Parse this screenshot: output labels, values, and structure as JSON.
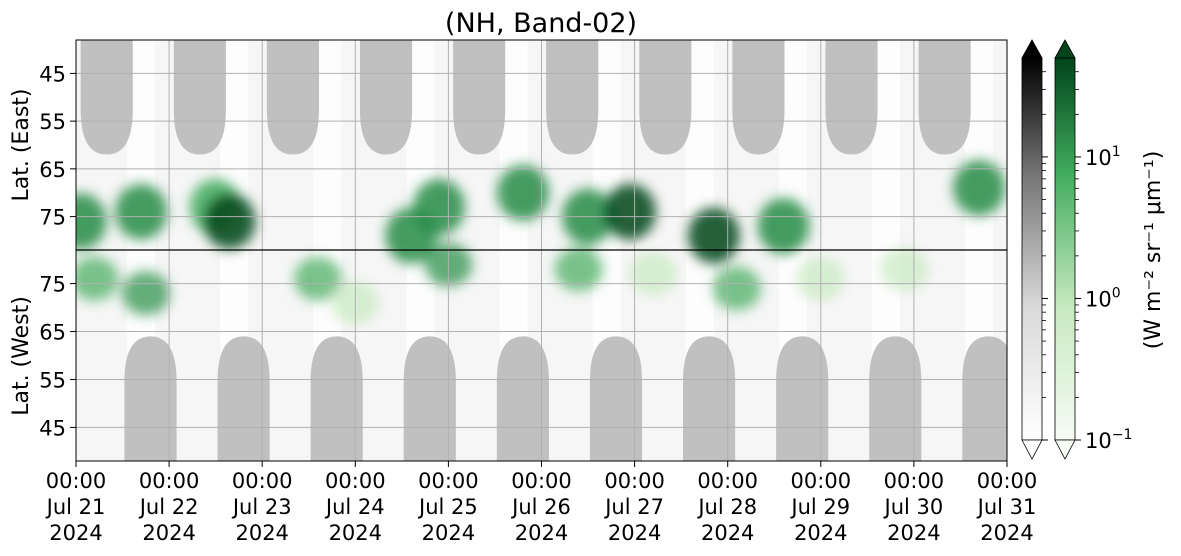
{
  "chart_data": {
    "type": "heatmap",
    "title": "(NH, Band-02)",
    "ylabel_top": "Lat. (East)",
    "ylabel_bottom": "Lat. (West)",
    "yticks_top": [
      "45",
      "55",
      "65",
      "75"
    ],
    "yticks_bottom": [
      "75",
      "65",
      "55",
      "45"
    ],
    "xticks": [
      {
        "time": "00:00",
        "date": "Jul 21",
        "year": "2024"
      },
      {
        "time": "00:00",
        "date": "Jul 22",
        "year": "2024"
      },
      {
        "time": "00:00",
        "date": "Jul 23",
        "year": "2024"
      },
      {
        "time": "00:00",
        "date": "Jul 24",
        "year": "2024"
      },
      {
        "time": "00:00",
        "date": "Jul 25",
        "year": "2024"
      },
      {
        "time": "00:00",
        "date": "Jul 26",
        "year": "2024"
      },
      {
        "time": "00:00",
        "date": "Jul 27",
        "year": "2024"
      },
      {
        "time": "00:00",
        "date": "Jul 28",
        "year": "2024"
      },
      {
        "time": "00:00",
        "date": "Jul 29",
        "year": "2024"
      },
      {
        "time": "00:00",
        "date": "Jul 30",
        "year": "2024"
      },
      {
        "time": "00:00",
        "date": "Jul 31",
        "year": "2024"
      }
    ],
    "xlim": [
      "2024-07-21 00:00",
      "2024-07-31 00:00"
    ],
    "ylim_top": [
      38,
      82
    ],
    "ylim_bottom": [
      82,
      38
    ],
    "grid": true,
    "colorbar": {
      "label": "(W m⁻² sr⁻¹ μm⁻¹)",
      "scale": "log",
      "range": [
        0.1,
        50
      ],
      "ticks": [
        {
          "base": "10",
          "exp": "1",
          "value": 10
        },
        {
          "base": "10",
          "exp": "0",
          "value": 1
        },
        {
          "base": "10",
          "exp": "−1",
          "value": 0.1
        }
      ],
      "extend": "both",
      "cmaps": [
        "Greys",
        "Greens"
      ]
    },
    "colors": {
      "green_dark": "#00441b",
      "green_mid": "#41ab5d",
      "green_light": "#c7e9c0",
      "grey_shade": "#c0c0c0",
      "background": "#f6f6f6"
    },
    "night_shading_east": [
      {
        "day": 0.33,
        "edge_lat": 62
      },
      {
        "day": 1.33,
        "edge_lat": 62
      },
      {
        "day": 2.33,
        "edge_lat": 62
      },
      {
        "day": 3.33,
        "edge_lat": 62
      },
      {
        "day": 4.33,
        "edge_lat": 62
      },
      {
        "day": 5.33,
        "edge_lat": 62
      },
      {
        "day": 6.33,
        "edge_lat": 62
      },
      {
        "day": 7.33,
        "edge_lat": 62
      },
      {
        "day": 8.33,
        "edge_lat": 62
      },
      {
        "day": 9.33,
        "edge_lat": 62
      }
    ],
    "night_shading_west": [
      {
        "day": 0.8,
        "edge_lat": 64
      },
      {
        "day": 1.8,
        "edge_lat": 64
      },
      {
        "day": 2.8,
        "edge_lat": 64
      },
      {
        "day": 3.8,
        "edge_lat": 64
      },
      {
        "day": 4.8,
        "edge_lat": 64
      },
      {
        "day": 5.8,
        "edge_lat": 64
      },
      {
        "day": 6.8,
        "edge_lat": 64
      },
      {
        "day": 7.8,
        "edge_lat": 64
      },
      {
        "day": 8.8,
        "edge_lat": 64
      },
      {
        "day": 9.8,
        "edge_lat": 64
      }
    ],
    "aurora_patches_east": [
      {
        "day": 0.05,
        "lat": 76,
        "intensity": 4
      },
      {
        "day": 0.7,
        "lat": 74,
        "intensity": 6
      },
      {
        "day": 1.5,
        "lat": 73,
        "intensity": 3
      },
      {
        "day": 1.65,
        "lat": 76,
        "intensity": 12
      },
      {
        "day": 3.6,
        "lat": 79,
        "intensity": 10
      },
      {
        "day": 3.9,
        "lat": 73,
        "intensity": 5
      },
      {
        "day": 4.8,
        "lat": 70,
        "intensity": 4
      },
      {
        "day": 5.5,
        "lat": 75,
        "intensity": 6
      },
      {
        "day": 5.95,
        "lat": 74,
        "intensity": 15
      },
      {
        "day": 6.85,
        "lat": 79,
        "intensity": 20
      },
      {
        "day": 7.6,
        "lat": 77,
        "intensity": 5
      },
      {
        "day": 9.7,
        "lat": 69,
        "intensity": 10
      }
    ],
    "aurora_patches_west": [
      {
        "day": 0.2,
        "lat": 76,
        "intensity": 2
      },
      {
        "day": 0.75,
        "lat": 73,
        "intensity": 4
      },
      {
        "day": 2.6,
        "lat": 76,
        "intensity": 3
      },
      {
        "day": 3.0,
        "lat": 71,
        "intensity": 1
      },
      {
        "day": 4.0,
        "lat": 79,
        "intensity": 4
      },
      {
        "day": 5.4,
        "lat": 78,
        "intensity": 2
      },
      {
        "day": 6.2,
        "lat": 77,
        "intensity": 1
      },
      {
        "day": 7.1,
        "lat": 74,
        "intensity": 2
      },
      {
        "day": 8.0,
        "lat": 76,
        "intensity": 1
      },
      {
        "day": 8.9,
        "lat": 78,
        "intensity": 1
      }
    ]
  }
}
